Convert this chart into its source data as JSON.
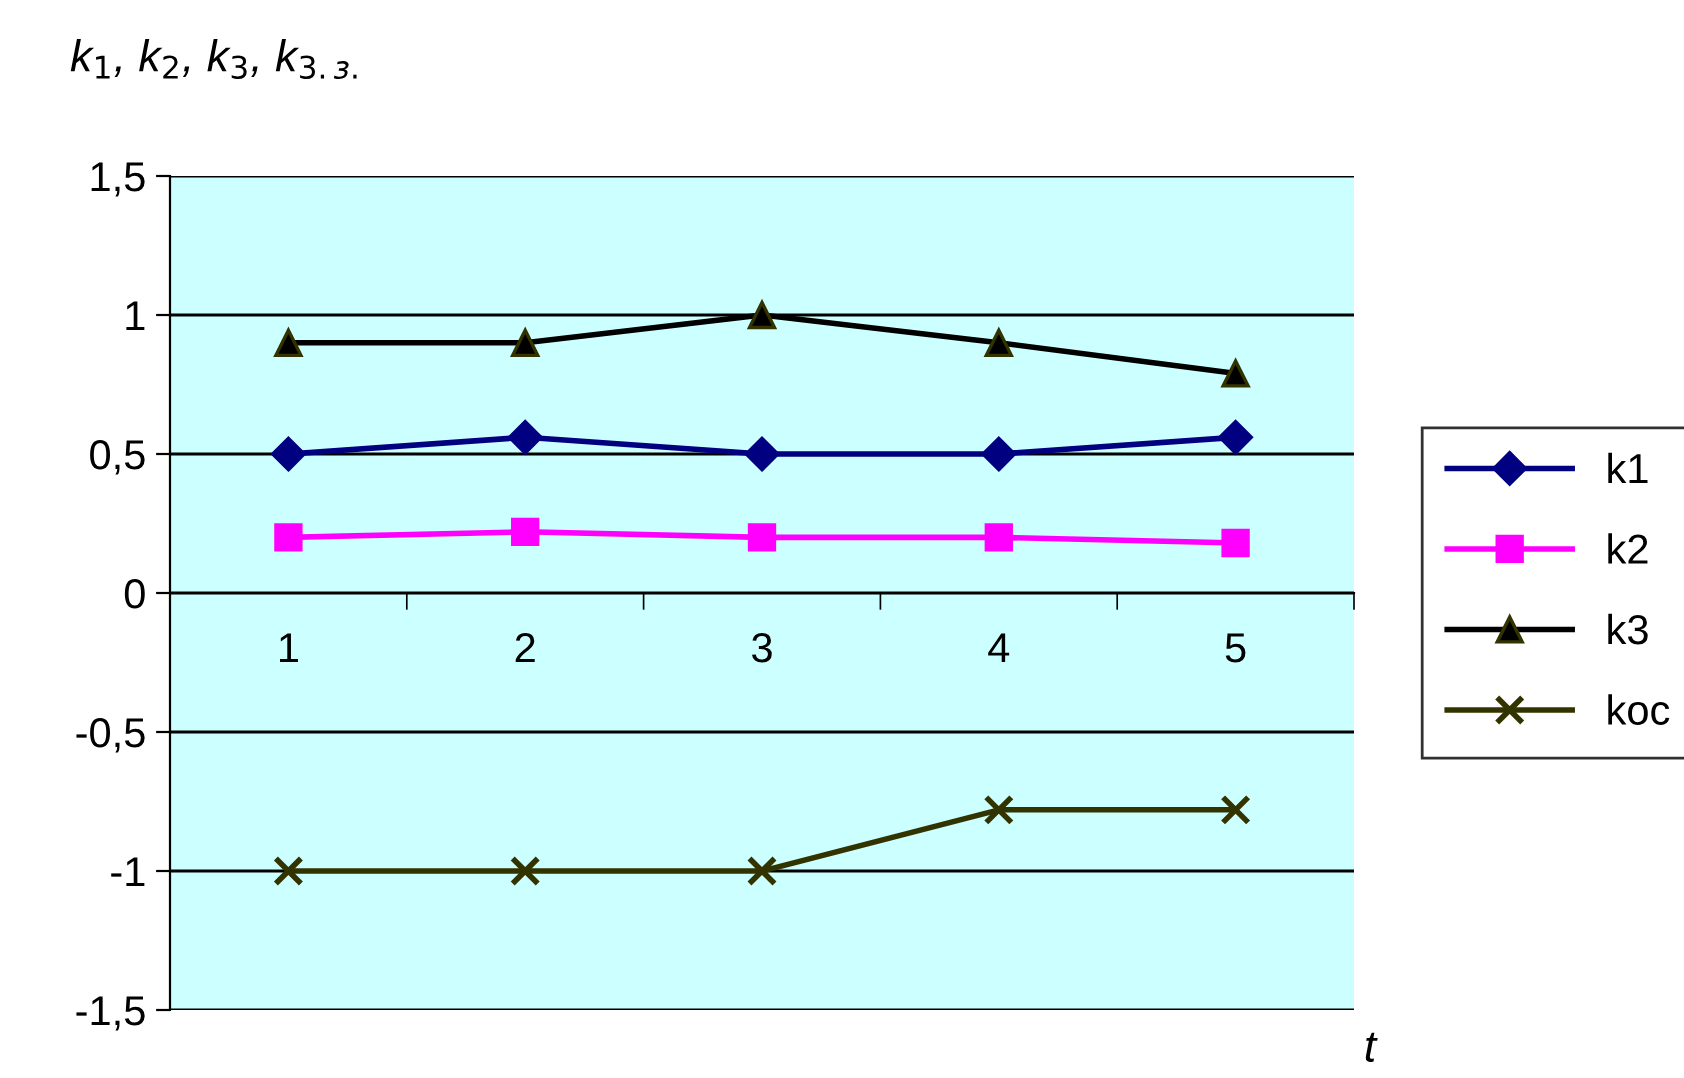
{
  "chart_data": {
    "type": "line",
    "ylabel": "k$_{1}$, k$_{2}$, k$_{3}$, k$_{3.з.}$",
    "xlabel": "t",
    "categories": [
      "1",
      "2",
      "3",
      "4",
      "5"
    ],
    "series": [
      {
        "name": "k1",
        "color": "#000080",
        "marker": "diamond",
        "values": [
          0.5,
          0.56,
          0.5,
          0.5,
          0.56
        ]
      },
      {
        "name": "k2",
        "color": "#ff00ff",
        "marker": "square",
        "values": [
          0.2,
          0.22,
          0.2,
          0.2,
          0.18
        ]
      },
      {
        "name": "k3",
        "color": "#000000",
        "marker": "triangle",
        "values": [
          0.9,
          0.9,
          1.0,
          0.9,
          0.79
        ]
      },
      {
        "name": "koc",
        "color": "#333300",
        "marker": "cross",
        "values": [
          -1.0,
          -1.0,
          -1.0,
          -0.78,
          -0.78
        ]
      }
    ],
    "ylim": [
      -1.5,
      1.5
    ],
    "yticks": [
      {
        "value": -1.5,
        "label": "-1,5"
      },
      -1,
      {
        "value": -0.5,
        "label": "-0,5"
      },
      0,
      {
        "value": 0.5,
        "label": "0,5"
      },
      1,
      {
        "value": 1.5,
        "label": "1,5"
      }
    ],
    "grid": "y",
    "legend": "right"
  }
}
